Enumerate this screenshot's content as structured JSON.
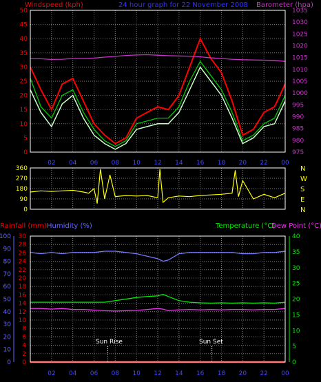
{
  "header": {
    "wind_title": "Windspeed (kph)",
    "date_title": "24 hour graph for  22 November 2008",
    "baro_title": "Barometer (hpa)"
  },
  "bottom_header": {
    "rain_title": "Rainfall (mm)",
    "hum_title": "Humidity (%)",
    "temp_title": "Temperature (°C)",
    "dew_title": "Dew Point (°C)"
  },
  "annotations": {
    "sunrise": "Sun Rise",
    "sunset": "Sun Set"
  },
  "colors": {
    "wind_gust": "#ff0000",
    "wind_avg": "#c8ffc8",
    "wind_ma": "#00cc00",
    "barometer": "#cc33cc",
    "direction": "#ffff00",
    "humidity": "#7777ff",
    "temperature": "#00ee00",
    "dewpoint": "#ee33ee",
    "rainfall": "#ff0000",
    "grid": "#808080"
  },
  "chart_data": [
    {
      "type": "line",
      "title": "Windspeed (kph) / Barometer (hpa)",
      "x_unit": "hour",
      "x_ticks": [
        "02",
        "04",
        "06",
        "08",
        "10",
        "12",
        "14",
        "16",
        "18",
        "20",
        "22",
        "00"
      ],
      "y_left_ticks": [
        "0",
        "5",
        "10",
        "15",
        "20",
        "25",
        "30",
        "35",
        "40",
        "45",
        "50"
      ],
      "y_right_ticks": [
        "975",
        "980",
        "985",
        "990",
        "995",
        "1000",
        "1005",
        "1010",
        "1015",
        "1020",
        "1025",
        "1030",
        "1035"
      ],
      "ylim_left": [
        0,
        50
      ],
      "ylim_right": [
        975,
        1035
      ],
      "x": [
        0,
        1,
        2,
        3,
        4,
        5,
        6,
        7,
        8,
        9,
        10,
        11,
        12,
        13,
        14,
        15,
        16,
        17,
        18,
        19,
        20,
        21,
        22,
        23,
        24
      ],
      "series": [
        {
          "name": "Gust",
          "axis": "left",
          "values": [
            30,
            22,
            15,
            24,
            26,
            18,
            10,
            6,
            3,
            5,
            12,
            14,
            16,
            15,
            20,
            30,
            40,
            33,
            28,
            18,
            6,
            8,
            14,
            16,
            24
          ]
        },
        {
          "name": "Wind",
          "axis": "left",
          "values": [
            22,
            14,
            9,
            17,
            20,
            12,
            6,
            3,
            1,
            3,
            8,
            9,
            10,
            10,
            14,
            22,
            30,
            25,
            20,
            12,
            3,
            5,
            9,
            10,
            18
          ]
        },
        {
          "name": "Average",
          "axis": "left",
          "values": [
            26,
            16,
            12,
            20,
            22,
            14,
            8,
            4,
            2,
            4,
            10,
            11,
            12,
            12,
            16,
            25,
            32,
            27,
            22,
            14,
            4,
            6,
            10,
            12,
            20
          ]
        },
        {
          "name": "Barometer",
          "axis": "right",
          "values": [
            1014.5,
            1014.5,
            1014.2,
            1014.3,
            1014.6,
            1014.6,
            1014.8,
            1015.2,
            1015.5,
            1015.9,
            1016.1,
            1016.2,
            1016.0,
            1015.8,
            1015.7,
            1015.6,
            1015.3,
            1014.9,
            1014.6,
            1014.3,
            1014.1,
            1014.0,
            1013.9,
            1013.8,
            1013.4
          ]
        }
      ]
    },
    {
      "type": "line",
      "title": "Wind direction",
      "y_ticks": [
        "360",
        "270",
        "180",
        "90",
        "0"
      ],
      "y_letters": [
        "N",
        "W",
        "S",
        "E",
        "N"
      ],
      "ylim": [
        0,
        360
      ],
      "x": [
        0,
        1,
        2,
        3,
        4,
        5,
        5.5,
        6,
        6.3,
        6.6,
        7,
        7.5,
        8,
        9,
        10,
        11,
        12,
        12.2,
        12.5,
        13,
        14,
        15,
        16,
        17,
        18,
        19,
        19.3,
        19.6,
        20,
        21,
        22,
        23,
        24
      ],
      "series": [
        {
          "name": "Direction",
          "values": [
            150,
            160,
            155,
            160,
            165,
            150,
            140,
            180,
            50,
            350,
            90,
            300,
            110,
            120,
            115,
            120,
            100,
            350,
            60,
            100,
            115,
            110,
            120,
            125,
            130,
            140,
            340,
            110,
            250,
            90,
            130,
            100,
            140
          ]
        }
      ]
    },
    {
      "type": "line",
      "title": "Rainfall (mm) / Humidity (%) / Temperature (°C) / Dew Point (°C)",
      "y_hum_ticks": [
        "0",
        "10",
        "20",
        "30",
        "40",
        "50",
        "60",
        "70",
        "80",
        "90",
        "100"
      ],
      "y_rain_ticks": [
        "0",
        "2",
        "4",
        "6",
        "8",
        "10",
        "12",
        "14",
        "16",
        "18",
        "20",
        "22",
        "24",
        "26",
        "28",
        "30"
      ],
      "y_temp_ticks": [
        "0",
        "5",
        "10",
        "15",
        "20",
        "25",
        "30",
        "35",
        "40"
      ],
      "ylim_humidity": [
        0,
        100
      ],
      "ylim_rain": [
        0,
        30
      ],
      "ylim_temp": [
        0,
        40
      ],
      "x": [
        0,
        1,
        2,
        3,
        4,
        5,
        6,
        7,
        8,
        9,
        10,
        11,
        12,
        12.5,
        13,
        14,
        15,
        16,
        17,
        18,
        19,
        20,
        21,
        22,
        23,
        24
      ],
      "series": [
        {
          "name": "Humidity",
          "axis": "humidity",
          "values": [
            87,
            86,
            87,
            86,
            87,
            87,
            87,
            88,
            88,
            87,
            86,
            84,
            82,
            80,
            81,
            86,
            87,
            87,
            87,
            87,
            87,
            86,
            86,
            87,
            87,
            88
          ]
        },
        {
          "name": "Temperature",
          "axis": "temp",
          "values": [
            19,
            19,
            19,
            19,
            19,
            19,
            19,
            19,
            19.5,
            20,
            20.5,
            20.8,
            21,
            21.5,
            20.8,
            19.5,
            19,
            18.8,
            18.7,
            18.8,
            18.7,
            18.8,
            18.7,
            18.8,
            18.7,
            19
          ]
        },
        {
          "name": "Dew Point",
          "axis": "temp",
          "values": [
            17,
            17,
            16.8,
            17,
            16.7,
            16.7,
            16.5,
            16.3,
            16.2,
            16.3,
            16.4,
            16.7,
            17,
            16.8,
            16.3,
            16.6,
            16.7,
            16.6,
            16.7,
            16.6,
            16.7,
            16.7,
            16.6,
            16.7,
            16.7,
            17
          ]
        },
        {
          "name": "Rainfall",
          "axis": "rain",
          "values": [
            0,
            0,
            0,
            0,
            0,
            0,
            0,
            0,
            0,
            0,
            0,
            0,
            0,
            0,
            0,
            0,
            0,
            0,
            0,
            0,
            0,
            0,
            0,
            0,
            0,
            0
          ]
        }
      ],
      "sunrise_hour": 7.3,
      "sunset_hour": 17.1
    }
  ]
}
